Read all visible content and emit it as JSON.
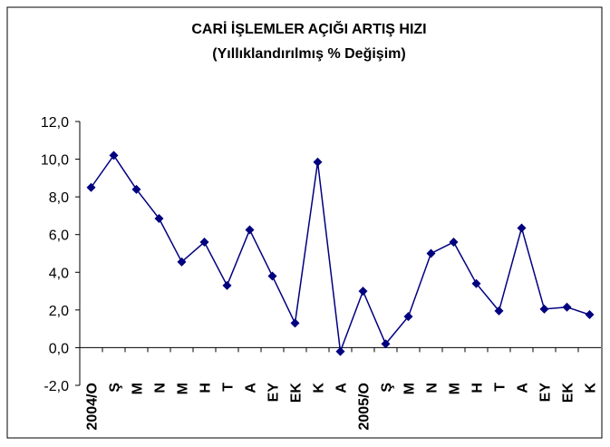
{
  "chart_data": {
    "type": "line",
    "title": "CARİ İŞLEMLER AÇIĞI ARTIŞ HIZI",
    "subtitle": "(Yıllıklandırılmış % Değişim)",
    "categories": [
      "2004/O",
      "Ş",
      "M",
      "N",
      "M",
      "H",
      "T",
      "A",
      "EY",
      "EK",
      "K",
      "A",
      "2005/O",
      "Ş",
      "M",
      "N",
      "M",
      "H",
      "T",
      "A",
      "EY",
      "EK",
      "K"
    ],
    "series": [
      {
        "name": "Cari İşlemler Açığı Artış Hızı",
        "color": "#000080",
        "values": [
          8.5,
          10.2,
          8.4,
          6.85,
          4.55,
          5.6,
          3.3,
          6.25,
          3.8,
          1.3,
          9.85,
          -0.2,
          3.0,
          0.2,
          1.65,
          5.0,
          5.6,
          3.4,
          1.95,
          6.35,
          2.05,
          2.15,
          1.75
        ]
      }
    ],
    "ylim": [
      -2,
      12
    ],
    "yticks": [
      {
        "value": -2,
        "label": "-2,0"
      },
      {
        "value": 0,
        "label": "0,0"
      },
      {
        "value": 2,
        "label": "2,0"
      },
      {
        "value": 4,
        "label": "4,0"
      },
      {
        "value": 6,
        "label": "6,0"
      },
      {
        "value": 8,
        "label": "8,0"
      },
      {
        "value": 10,
        "label": "10,0"
      },
      {
        "value": 12,
        "label": "12,0"
      }
    ],
    "grid": false,
    "legend": false
  }
}
